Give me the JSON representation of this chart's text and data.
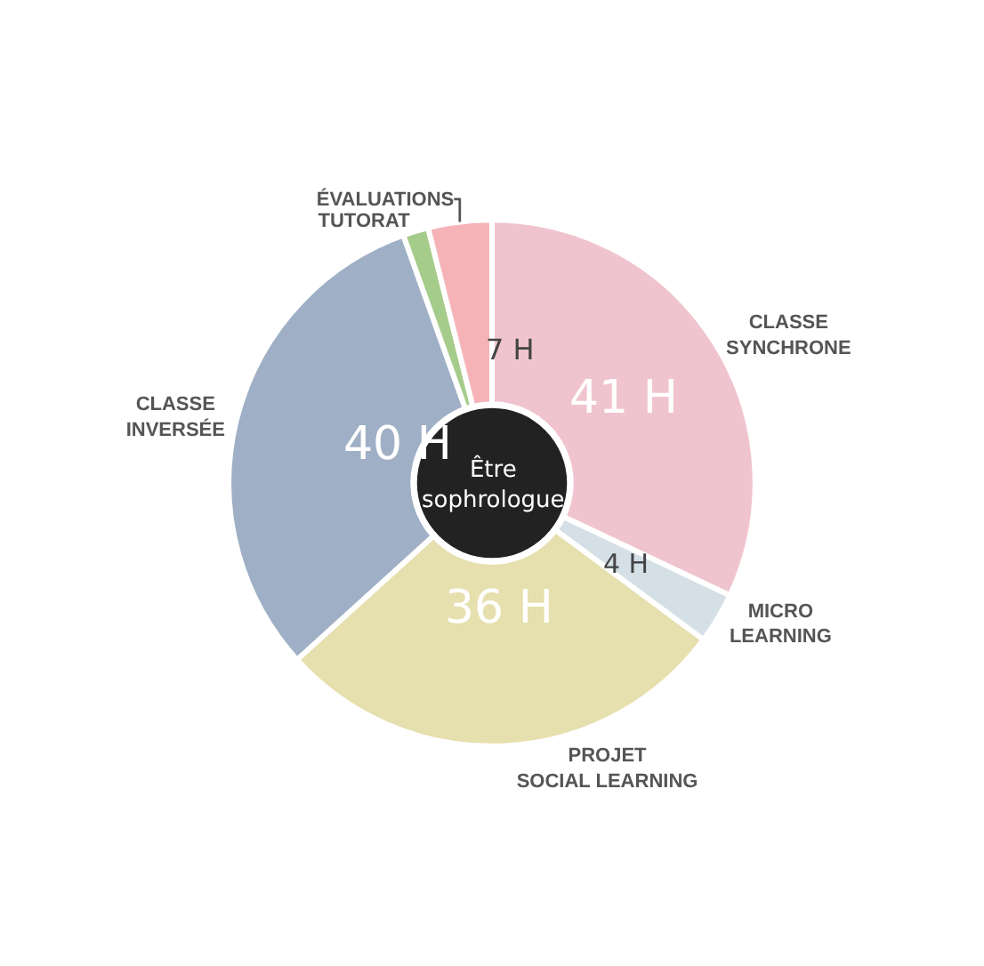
{
  "chart_data": {
    "type": "donut",
    "title": "Être sophrologue",
    "categories": [
      "CLASSE SYNCHRONE",
      "MICRO LEARNING",
      "PROJET SOCIAL LEARNING",
      "CLASSE INVERSÉE",
      "TUTORAT",
      "ÉVALUATIONS"
    ],
    "values": [
      41,
      4,
      36,
      40,
      2,
      5
    ],
    "value_labels": [
      "41 H",
      "4 H",
      "36 H",
      "40 H",
      null,
      null
    ],
    "colors": [
      "#f0c4cf",
      "#d4e0e6",
      "#e6dfae",
      "#9fb0c6",
      "#a5cc8a",
      "#f5b3b8"
    ],
    "annotations": [
      "7 H"
    ],
    "legend": false
  }
}
